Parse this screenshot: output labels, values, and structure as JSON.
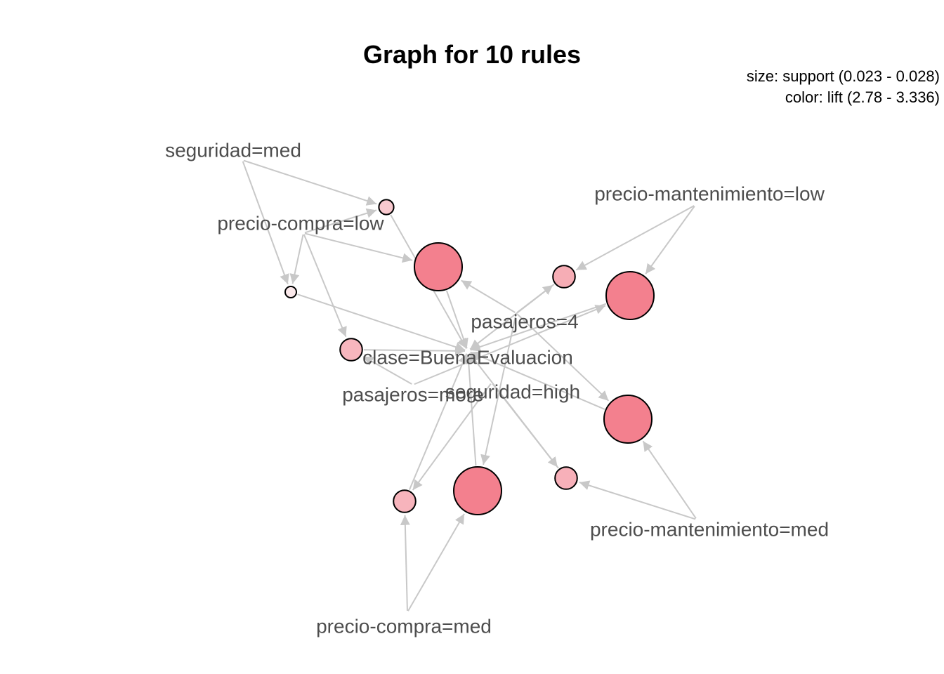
{
  "title": "Graph for 10 rules",
  "legend": {
    "size": "size: support (0.023 - 0.028)",
    "color": "color: lift (2.78 - 3.336)"
  },
  "colors": {
    "edge": "#c8c8c8",
    "arrowhead": "#c8c8c8",
    "label": "#4d4d4d",
    "node_stroke": "#000000",
    "lift_low": "#fbe9eb",
    "lift_high": "#f3808e"
  },
  "items": [
    {
      "id": "seguridad_med",
      "label": "seguridad=med"
    },
    {
      "id": "precio_compra_low",
      "label": "precio-compra=low"
    },
    {
      "id": "precio_mant_low",
      "label": "precio-mantenimiento=low"
    },
    {
      "id": "pasajeros_4",
      "label": "pasajeros=4"
    },
    {
      "id": "clase_buena",
      "label": "clase=BuenaEvaluacion"
    },
    {
      "id": "pasajeros_more",
      "label": "pasajeros=more"
    },
    {
      "id": "seguridad_high",
      "label": "seguridad=high"
    },
    {
      "id": "precio_mant_med",
      "label": "precio-mantenimiento=med"
    },
    {
      "id": "precio_compra_med",
      "label": "precio-compra=med"
    }
  ],
  "rules": [
    {
      "id": "r1",
      "support": 0.0235,
      "lift": 2.95
    },
    {
      "id": "r2",
      "support": 0.028,
      "lift": 3.336
    },
    {
      "id": "r3",
      "support": 0.023,
      "lift": 2.78
    },
    {
      "id": "r4",
      "support": 0.0245,
      "lift": 3.1
    },
    {
      "id": "r5",
      "support": 0.0245,
      "lift": 3.05
    },
    {
      "id": "r6",
      "support": 0.028,
      "lift": 3.336
    },
    {
      "id": "r7",
      "support": 0.028,
      "lift": 3.336
    },
    {
      "id": "r8",
      "support": 0.0245,
      "lift": 3.08
    },
    {
      "id": "r9",
      "support": 0.0245,
      "lift": 3.06
    },
    {
      "id": "r10",
      "support": 0.028,
      "lift": 3.336
    }
  ],
  "edges": [
    [
      "seguridad_med",
      "r1"
    ],
    [
      "precio_compra_low",
      "r1"
    ],
    [
      "r1",
      "clase_buena"
    ],
    [
      "precio_compra_low",
      "r2"
    ],
    [
      "pasajeros_4",
      "r2"
    ],
    [
      "r2",
      "clase_buena"
    ],
    [
      "seguridad_med",
      "r3"
    ],
    [
      "precio_compra_low",
      "r3"
    ],
    [
      "r3",
      "clase_buena"
    ],
    [
      "precio_mant_low",
      "r4"
    ],
    [
      "pasajeros_4",
      "r4"
    ],
    [
      "r4",
      "clase_buena"
    ],
    [
      "precio_compra_low",
      "r5"
    ],
    [
      "pasajeros_more",
      "r5"
    ],
    [
      "r5",
      "clase_buena"
    ],
    [
      "precio_mant_low",
      "r6"
    ],
    [
      "pasajeros_more",
      "r6"
    ],
    [
      "r6",
      "clase_buena"
    ],
    [
      "precio_mant_med",
      "r7"
    ],
    [
      "pasajeros_4",
      "r7"
    ],
    [
      "r7",
      "clase_buena"
    ],
    [
      "precio_mant_med",
      "r8"
    ],
    [
      "seguridad_high",
      "r8"
    ],
    [
      "r8",
      "clase_buena"
    ],
    [
      "precio_compra_med",
      "r9"
    ],
    [
      "seguridad_high",
      "r9"
    ],
    [
      "r9",
      "clase_buena"
    ],
    [
      "precio_compra_med",
      "r10"
    ],
    [
      "pasajeros_4",
      "r10"
    ],
    [
      "r10",
      "clase_buena"
    ]
  ]
}
